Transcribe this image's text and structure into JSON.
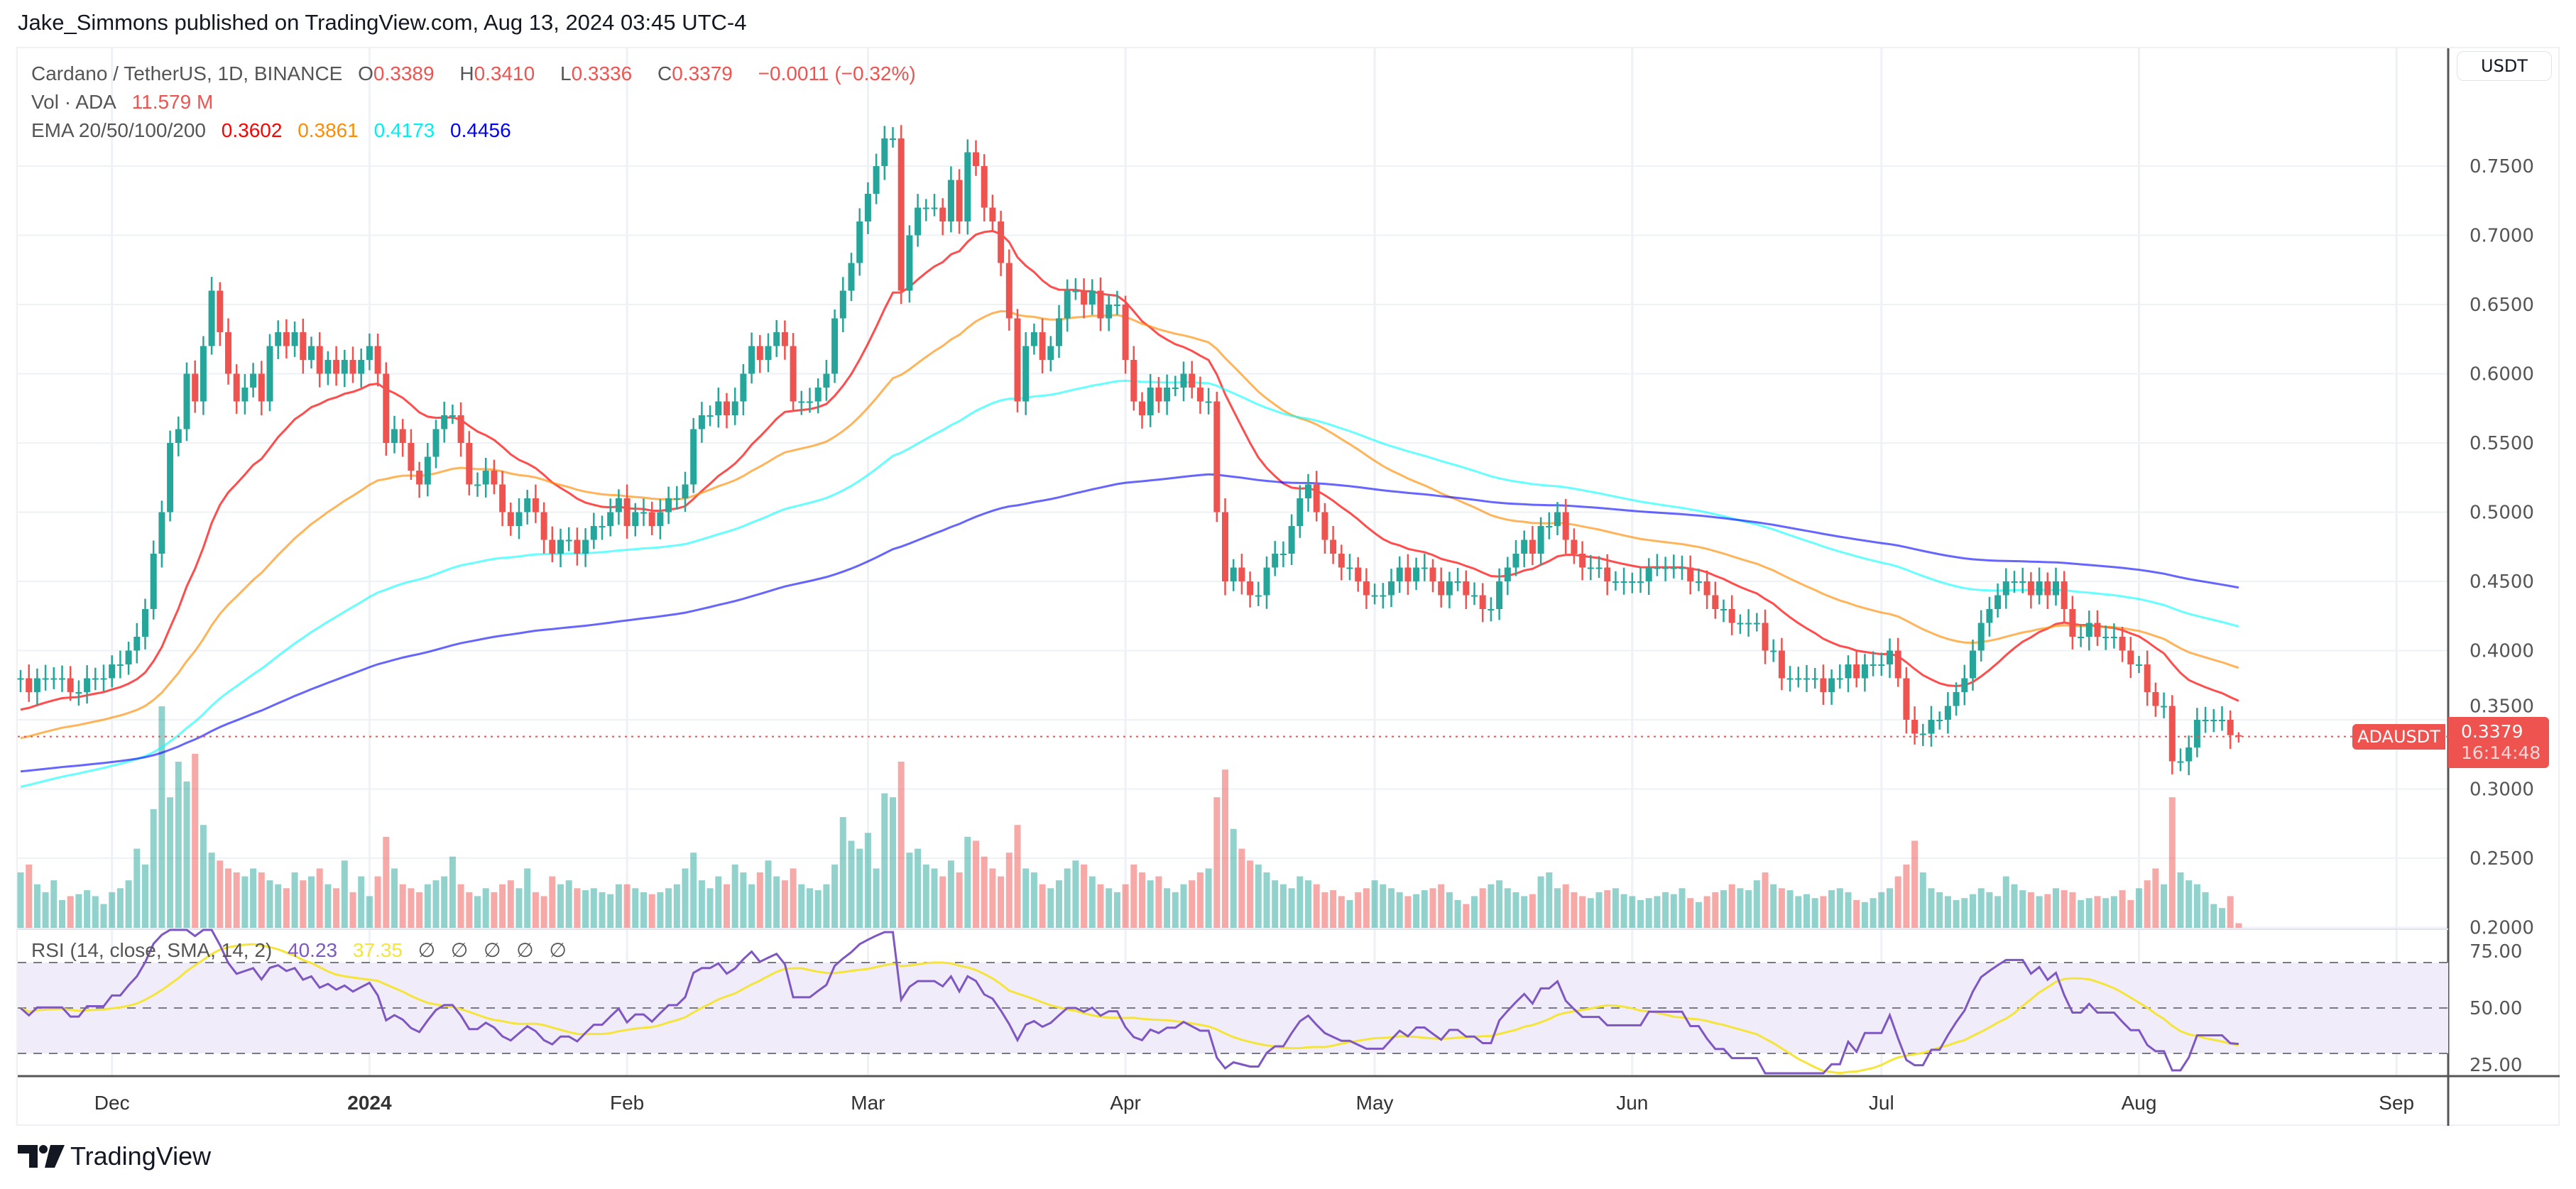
{
  "published": "Jake_Simmons published on TradingView.com, Aug 13, 2024 03:45 UTC-4",
  "legend": {
    "symbol": "Cardano / TetherUS, 1D, BINANCE",
    "o_label": "O",
    "o": "0.3389",
    "h_label": "H",
    "h": "0.3410",
    "l_label": "L",
    "l": "0.3336",
    "c_label": "C",
    "c": "0.3379",
    "change": "−0.0011 (−0.32%)",
    "vol_label": "Vol · ADA",
    "vol": "11.579 M",
    "ema_label": "EMA 20/50/100/200",
    "ema_values": [
      "0.3602",
      "0.3861",
      "0.4173",
      "0.4456"
    ]
  },
  "rsi_legend": {
    "label": "RSI (14, close, SMA, 14, 2)",
    "rsi": "40.23",
    "sma": "37.35",
    "empty": [
      "∅",
      "∅",
      "∅",
      "∅",
      "∅"
    ]
  },
  "price_axis": {
    "currency": "USDT"
  },
  "last_price_tag": {
    "symbol": "ADAUSDT",
    "price": "0.3379",
    "countdown": "16:14:48"
  },
  "logo": "TradingView",
  "colors": {
    "up": "#26a69a",
    "down": "#ef5350",
    "ema20": "#ff0000",
    "ema50": "#ff8c00",
    "ema100": "#00ffff",
    "ema200": "#0000ff",
    "rsi": "#7e57c2",
    "rsi_sma": "#f5e43a",
    "rsi_band": "#f0ecf9"
  },
  "chart_data": {
    "type": "candlestick",
    "title": "Cardano / TetherUS, 1D, BINANCE",
    "ylim": [
      0.2,
      0.8
    ],
    "y_ticks": [
      "0.7500",
      "0.7000",
      "0.6500",
      "0.6000",
      "0.5500",
      "0.5000",
      "0.4500",
      "0.4000",
      "0.3500",
      "0.3000",
      "0.2500",
      "0.2000"
    ],
    "x_ticks": [
      "Dec",
      "2024",
      "Feb",
      "Mar",
      "Apr",
      "May",
      "Jun",
      "Jul",
      "Aug",
      "Sep"
    ],
    "rsi_ticks": [
      "75.00",
      "50.00",
      "25.00"
    ],
    "rsi_levels": [
      70,
      50,
      30
    ],
    "grid": true,
    "ema_start": {
      "ema20": 0.355,
      "ema50": 0.335,
      "ema100": 0.3,
      "ema200": 0.312
    },
    "months": [
      {
        "month": "2023-11",
        "from_day": 20,
        "closes": [
          0.38,
          0.37,
          0.38,
          0.38,
          0.38,
          0.38,
          0.37,
          0.37,
          0.38,
          0.38,
          0.38
        ],
        "volume_m": [
          140,
          160,
          110,
          90,
          120,
          70,
          80,
          85,
          95,
          80,
          60
        ]
      },
      {
        "month": "2023-12",
        "from_day": 1,
        "closes": [
          0.39,
          0.39,
          0.4,
          0.41,
          0.43,
          0.47,
          0.5,
          0.55,
          0.56,
          0.6,
          0.58,
          0.62,
          0.66,
          0.63,
          0.6,
          0.58,
          0.59,
          0.6,
          0.58,
          0.62,
          0.63,
          0.62,
          0.63,
          0.61,
          0.62,
          0.6,
          0.61,
          0.6,
          0.61,
          0.6,
          0.61
        ],
        "volume_m": [
          90,
          100,
          120,
          200,
          160,
          300,
          560,
          330,
          420,
          370,
          440,
          260,
          190,
          170,
          150,
          140,
          130,
          150,
          140,
          120,
          110,
          100,
          140,
          120,
          130,
          150,
          110,
          100,
          170,
          90,
          130
        ]
      },
      {
        "month": "2024-01",
        "from_day": 1,
        "closes": [
          0.62,
          0.6,
          0.55,
          0.56,
          0.55,
          0.53,
          0.52,
          0.54,
          0.56,
          0.57,
          0.57,
          0.55,
          0.52,
          0.52,
          0.53,
          0.52,
          0.5,
          0.49,
          0.5,
          0.51,
          0.5,
          0.48,
          0.47,
          0.48,
          0.48,
          0.47,
          0.48,
          0.49,
          0.49,
          0.5,
          0.51
        ],
        "volume_m": [
          80,
          130,
          230,
          150,
          110,
          100,
          90,
          110,
          120,
          130,
          180,
          110,
          90,
          80,
          100,
          90,
          110,
          120,
          100,
          150,
          90,
          80,
          130,
          110,
          120,
          100,
          95,
          100,
          90,
          85,
          110
        ]
      },
      {
        "month": "2024-02",
        "from_day": 1,
        "closes": [
          0.49,
          0.5,
          0.5,
          0.49,
          0.5,
          0.51,
          0.51,
          0.52,
          0.56,
          0.57,
          0.57,
          0.58,
          0.57,
          0.58,
          0.6,
          0.62,
          0.61,
          0.62,
          0.63,
          0.62,
          0.58,
          0.58,
          0.58,
          0.59,
          0.6,
          0.64,
          0.66,
          0.68,
          0.71
        ],
        "volume_m": [
          110,
          100,
          90,
          85,
          90,
          100,
          110,
          150,
          190,
          120,
          100,
          130,
          110,
          160,
          140,
          110,
          140,
          170,
          130,
          120,
          150,
          110,
          100,
          95,
          110,
          160,
          280,
          220,
          200
        ]
      },
      {
        "month": "2024-03",
        "from_day": 1,
        "closes": [
          0.73,
          0.75,
          0.77,
          0.77,
          0.66,
          0.7,
          0.72,
          0.72,
          0.72,
          0.71,
          0.74,
          0.71,
          0.76,
          0.75,
          0.72,
          0.71,
          0.68,
          0.64,
          0.58,
          0.62,
          0.63,
          0.61,
          0.62,
          0.64,
          0.66,
          0.66,
          0.65,
          0.66,
          0.64,
          0.65,
          0.65
        ],
        "volume_m": [
          240,
          150,
          340,
          330,
          420,
          190,
          200,
          160,
          150,
          130,
          170,
          140,
          230,
          220,
          180,
          150,
          130,
          190,
          260,
          150,
          140,
          110,
          100,
          120,
          150,
          170,
          160,
          130,
          110,
          100,
          90
        ]
      },
      {
        "month": "2024-04",
        "from_day": 1,
        "closes": [
          0.61,
          0.58,
          0.57,
          0.59,
          0.58,
          0.59,
          0.59,
          0.6,
          0.59,
          0.58,
          0.58,
          0.5,
          0.45,
          0.46,
          0.45,
          0.44,
          0.44,
          0.46,
          0.47,
          0.47,
          0.49,
          0.51,
          0.52,
          0.5,
          0.48,
          0.47,
          0.46,
          0.46,
          0.45,
          0.44
        ],
        "volume_m": [
          110,
          160,
          140,
          120,
          130,
          100,
          90,
          110,
          120,
          140,
          150,
          330,
          400,
          250,
          200,
          170,
          160,
          140,
          120,
          110,
          100,
          130,
          120,
          110,
          90,
          95,
          80,
          70,
          90,
          100
        ]
      },
      {
        "month": "2024-05",
        "from_day": 1,
        "closes": [
          0.44,
          0.44,
          0.45,
          0.46,
          0.45,
          0.46,
          0.46,
          0.45,
          0.44,
          0.45,
          0.45,
          0.44,
          0.44,
          0.43,
          0.43,
          0.45,
          0.46,
          0.47,
          0.48,
          0.47,
          0.49,
          0.49,
          0.5,
          0.48,
          0.47,
          0.46,
          0.46,
          0.46,
          0.45,
          0.45,
          0.45
        ],
        "volume_m": [
          120,
          110,
          100,
          90,
          80,
          85,
          95,
          100,
          110,
          90,
          70,
          60,
          80,
          100,
          110,
          120,
          100,
          90,
          80,
          85,
          130,
          140,
          100,
          110,
          90,
          80,
          75,
          90,
          95,
          100,
          85
        ]
      },
      {
        "month": "2024-06",
        "from_day": 1,
        "closes": [
          0.45,
          0.45,
          0.46,
          0.46,
          0.46,
          0.46,
          0.46,
          0.45,
          0.45,
          0.44,
          0.43,
          0.43,
          0.42,
          0.42,
          0.42,
          0.42,
          0.4,
          0.4,
          0.38,
          0.38,
          0.38,
          0.38,
          0.38,
          0.37,
          0.38,
          0.38,
          0.39,
          0.38,
          0.39,
          0.39
        ],
        "volume_m": [
          80,
          70,
          75,
          80,
          90,
          85,
          100,
          75,
          65,
          80,
          90,
          95,
          110,
          100,
          95,
          120,
          140,
          110,
          100,
          95,
          80,
          85,
          75,
          80,
          95,
          100,
          90,
          70,
          65,
          75
        ]
      },
      {
        "month": "2024-07",
        "from_day": 1,
        "closes": [
          0.39,
          0.4,
          0.38,
          0.35,
          0.34,
          0.34,
          0.35,
          0.35,
          0.36,
          0.37,
          0.38,
          0.4,
          0.42,
          0.43,
          0.44,
          0.45,
          0.45,
          0.45,
          0.44,
          0.45,
          0.44,
          0.45,
          0.43,
          0.41,
          0.41,
          0.42,
          0.41,
          0.41,
          0.41,
          0.4,
          0.39
        ],
        "volume_m": [
          90,
          100,
          130,
          160,
          220,
          140,
          100,
          90,
          80,
          70,
          75,
          85,
          100,
          90,
          80,
          130,
          110,
          95,
          90,
          80,
          85,
          100,
          95,
          90,
          70,
          75,
          80,
          75,
          80,
          95,
          70
        ]
      },
      {
        "month": "2024-08",
        "from_day": 1,
        "closes": [
          0.39,
          0.37,
          0.36,
          0.36,
          0.32,
          0.32,
          0.33,
          0.35,
          0.35,
          0.35,
          0.35,
          0.3389,
          0.3379
        ],
        "volume_m": [
          100,
          120,
          150,
          110,
          330,
          140,
          120,
          110,
          90,
          60,
          50,
          80,
          11.579
        ]
      }
    ]
  }
}
